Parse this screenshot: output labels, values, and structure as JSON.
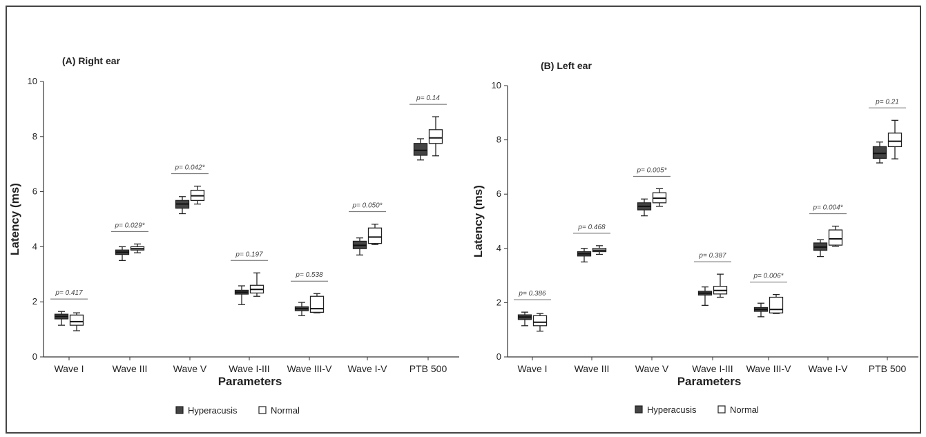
{
  "legend": [
    {
      "name": "Hyperacusis",
      "color": "#444444"
    },
    {
      "name": "Normal",
      "color": "#ffffff"
    }
  ],
  "chart_data": [
    {
      "type": "box",
      "title": "(A) Right ear",
      "xlabel": "Parameters",
      "ylabel": "Latency (ms)",
      "ylim": [
        0,
        10
      ],
      "yticks": [
        "0",
        "2",
        "4",
        "6",
        "8",
        "10"
      ],
      "categories": [
        "Wave I",
        "Wave III",
        "Wave V",
        "Wave I-III",
        "Wave III-V",
        "Wave I-V",
        "PTB 500"
      ],
      "p_values": [
        "p= 0.417",
        "p= 0.029*",
        "p= 0.042*",
        "p= 0.197",
        "p= 0.538",
        "p= 0.050*",
        "p= 0.14"
      ],
      "series": [
        {
          "name": "Hyperacusis",
          "boxes": [
            {
              "min": 1.15,
              "q1": 1.38,
              "median": 1.47,
              "q3": 1.55,
              "max": 1.65
            },
            {
              "min": 3.5,
              "q1": 3.72,
              "median": 3.8,
              "q3": 3.88,
              "max": 4.0
            },
            {
              "min": 5.2,
              "q1": 5.4,
              "median": 5.55,
              "q3": 5.68,
              "max": 5.82
            },
            {
              "min": 1.9,
              "q1": 2.28,
              "median": 2.35,
              "q3": 2.42,
              "max": 2.58
            },
            {
              "min": 1.5,
              "q1": 1.68,
              "median": 1.75,
              "q3": 1.82,
              "max": 1.98
            },
            {
              "min": 3.7,
              "q1": 3.93,
              "median": 4.05,
              "q3": 4.2,
              "max": 4.32
            },
            {
              "min": 7.15,
              "q1": 7.32,
              "median": 7.5,
              "q3": 7.75,
              "max": 7.92
            }
          ]
        },
        {
          "name": "Normal",
          "boxes": [
            {
              "min": 0.95,
              "q1": 1.15,
              "median": 1.28,
              "q3": 1.52,
              "max": 1.6
            },
            {
              "min": 3.78,
              "q1": 3.88,
              "median": 3.93,
              "q3": 4.0,
              "max": 4.1
            },
            {
              "min": 5.55,
              "q1": 5.68,
              "median": 5.85,
              "q3": 6.05,
              "max": 6.2
            },
            {
              "min": 2.2,
              "q1": 2.32,
              "median": 2.45,
              "q3": 2.6,
              "max": 3.05
            },
            {
              "min": 1.6,
              "q1": 1.62,
              "median": 1.75,
              "q3": 2.2,
              "max": 2.3
            },
            {
              "min": 4.08,
              "q1": 4.12,
              "median": 4.35,
              "q3": 4.68,
              "max": 4.82
            },
            {
              "min": 7.3,
              "q1": 7.75,
              "median": 7.95,
              "q3": 8.25,
              "max": 8.72
            }
          ]
        }
      ]
    },
    {
      "type": "box",
      "title": "(B) Left ear",
      "xlabel": "Parameters",
      "ylabel": "Latency (ms)",
      "ylim": [
        0,
        10
      ],
      "yticks": [
        "0",
        "2",
        "4",
        "6",
        "8",
        "10"
      ],
      "categories": [
        "Wave I",
        "Wave III",
        "Wave V",
        "Wave I-III",
        "Wave III-V",
        "Wave I-V",
        "PTB 500"
      ],
      "p_values": [
        "p= 0.386",
        "p= 0.468",
        "p= 0.005*",
        "p= 0.387",
        "p= 0.006*",
        "p= 0.004*",
        "p= 0.21"
      ],
      "series": [
        {
          "name": "Hyperacusis",
          "boxes": [
            {
              "min": 1.15,
              "q1": 1.38,
              "median": 1.47,
              "q3": 1.55,
              "max": 1.65
            },
            {
              "min": 3.5,
              "q1": 3.72,
              "median": 3.8,
              "q3": 3.88,
              "max": 4.0
            },
            {
              "min": 5.2,
              "q1": 5.42,
              "median": 5.55,
              "q3": 5.68,
              "max": 5.82
            },
            {
              "min": 1.9,
              "q1": 2.28,
              "median": 2.35,
              "q3": 2.42,
              "max": 2.58
            },
            {
              "min": 1.48,
              "q1": 1.68,
              "median": 1.75,
              "q3": 1.82,
              "max": 1.98
            },
            {
              "min": 3.7,
              "q1": 3.93,
              "median": 4.05,
              "q3": 4.2,
              "max": 4.32
            },
            {
              "min": 7.15,
              "q1": 7.32,
              "median": 7.5,
              "q3": 7.75,
              "max": 7.92
            }
          ]
        },
        {
          "name": "Normal",
          "boxes": [
            {
              "min": 0.95,
              "q1": 1.15,
              "median": 1.28,
              "q3": 1.52,
              "max": 1.6
            },
            {
              "min": 3.78,
              "q1": 3.88,
              "median": 3.93,
              "q3": 4.0,
              "max": 4.1
            },
            {
              "min": 5.55,
              "q1": 5.68,
              "median": 5.85,
              "q3": 6.05,
              "max": 6.2
            },
            {
              "min": 2.2,
              "q1": 2.32,
              "median": 2.45,
              "q3": 2.6,
              "max": 3.05
            },
            {
              "min": 1.6,
              "q1": 1.62,
              "median": 1.75,
              "q3": 2.2,
              "max": 2.3
            },
            {
              "min": 4.08,
              "q1": 4.12,
              "median": 4.35,
              "q3": 4.68,
              "max": 4.82
            },
            {
              "min": 7.3,
              "q1": 7.75,
              "median": 7.95,
              "q3": 8.25,
              "max": 8.72
            }
          ]
        }
      ]
    }
  ]
}
